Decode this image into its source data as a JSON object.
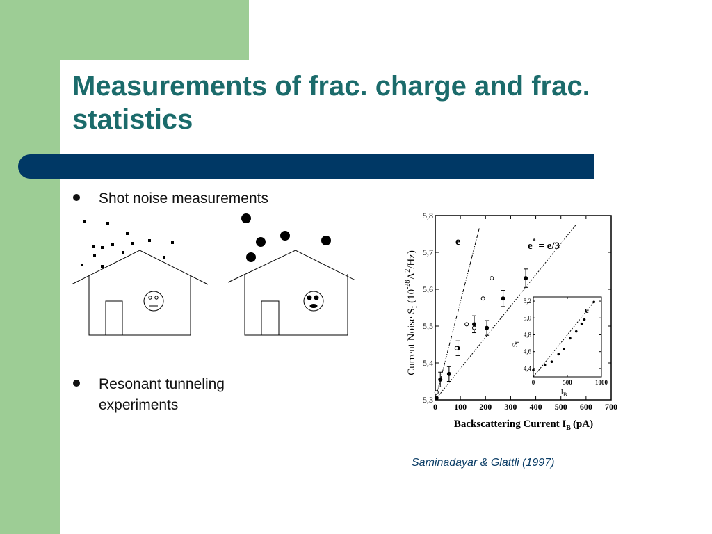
{
  "slide": {
    "title": "Measurements of frac. charge and frac. statistics",
    "bullets": [
      "Shot noise measurements",
      "Resonant tunneling experiments"
    ],
    "citation": "Saminadayar & Glattli (1997)",
    "colors": {
      "title": "#1b6b6b",
      "green": "#9dcd95",
      "blue_band": "#003865",
      "citation": "#0b3d66"
    }
  },
  "chart_data": [
    {
      "type": "scatter",
      "xlabel_main": "Backscattering Current I",
      "xlabel_sub": "B",
      "xlabel_unit": "(pA)",
      "ylabel": "Current Noise S",
      "ylabel_sub": "I",
      "ylabel_mid": "(10",
      "ylabel_exp": "-28",
      "ylabel_unit_a": "A",
      "ylabel_unit_exp": "2",
      "ylabel_unit_b": "/Hz)",
      "xlim": [
        0,
        700
      ],
      "ylim": [
        5.3,
        5.8
      ],
      "x_ticks": [
        "0",
        "100",
        "200",
        "300",
        "400",
        "500",
        "600",
        "700"
      ],
      "y_ticks": [
        "5,3",
        "5,4",
        "5,5",
        "5,6",
        "5,7",
        "5,8"
      ],
      "lines": [
        {
          "label": "e",
          "x": [
            0,
            175
          ],
          "y": [
            5.3,
            5.765
          ],
          "style": "dashdot"
        },
        {
          "label": "e* = e/3",
          "label_main": "e",
          "label_sup": "*",
          "label_rest": " = e/3",
          "x": [
            0,
            560
          ],
          "y": [
            5.3,
            5.775
          ],
          "style": "dotted"
        }
      ],
      "series": [
        {
          "name": "filled",
          "marker": "filled",
          "points": [
            {
              "x": 5,
              "y": 5.305,
              "err": 0.0
            },
            {
              "x": 20,
              "y": 5.355,
              "err": 0.02
            },
            {
              "x": 55,
              "y": 5.37,
              "err": 0.02
            },
            {
              "x": 90,
              "y": 5.44,
              "err": 0.02
            },
            {
              "x": 155,
              "y": 5.505,
              "err": 0.023
            },
            {
              "x": 205,
              "y": 5.495,
              "err": 0.02
            },
            {
              "x": 270,
              "y": 5.575,
              "err": 0.022
            },
            {
              "x": 360,
              "y": 5.63,
              "err": 0.025
            }
          ]
        },
        {
          "name": "open",
          "marker": "open",
          "points": [
            {
              "x": 5,
              "y": 5.32
            },
            {
              "x": 85,
              "y": 5.44
            },
            {
              "x": 125,
              "y": 5.505
            },
            {
              "x": 155,
              "y": 5.495
            },
            {
              "x": 190,
              "y": 5.575
            },
            {
              "x": 225,
              "y": 5.63
            }
          ]
        }
      ]
    },
    {
      "type": "scatter",
      "xlabel": "I",
      "xlabel_sub": "B",
      "ylabel": "S",
      "ylabel_sub": "I",
      "xlim": [
        0,
        1000
      ],
      "ylim": [
        4.3,
        5.25
      ],
      "x_ticks": [
        "0",
        "500",
        "1000"
      ],
      "y_ticks": [
        "4,4",
        "4,6",
        "4,8",
        "5,0",
        "5,2"
      ],
      "lines": [
        {
          "label": "e",
          "x": [
            0,
            900
          ],
          "y": [
            4.3,
            5.2
          ],
          "style": "dotted"
        }
      ],
      "series": [
        {
          "name": "inset",
          "points": [
            {
              "x": 0,
              "y": 4.38
            },
            {
              "x": 170,
              "y": 4.44
            },
            {
              "x": 270,
              "y": 4.48
            },
            {
              "x": 370,
              "y": 4.57
            },
            {
              "x": 450,
              "y": 4.63
            },
            {
              "x": 540,
              "y": 4.76
            },
            {
              "x": 630,
              "y": 4.84
            },
            {
              "x": 710,
              "y": 4.93
            },
            {
              "x": 750,
              "y": 4.98
            },
            {
              "x": 890,
              "y": 5.19
            }
          ]
        }
      ]
    }
  ]
}
